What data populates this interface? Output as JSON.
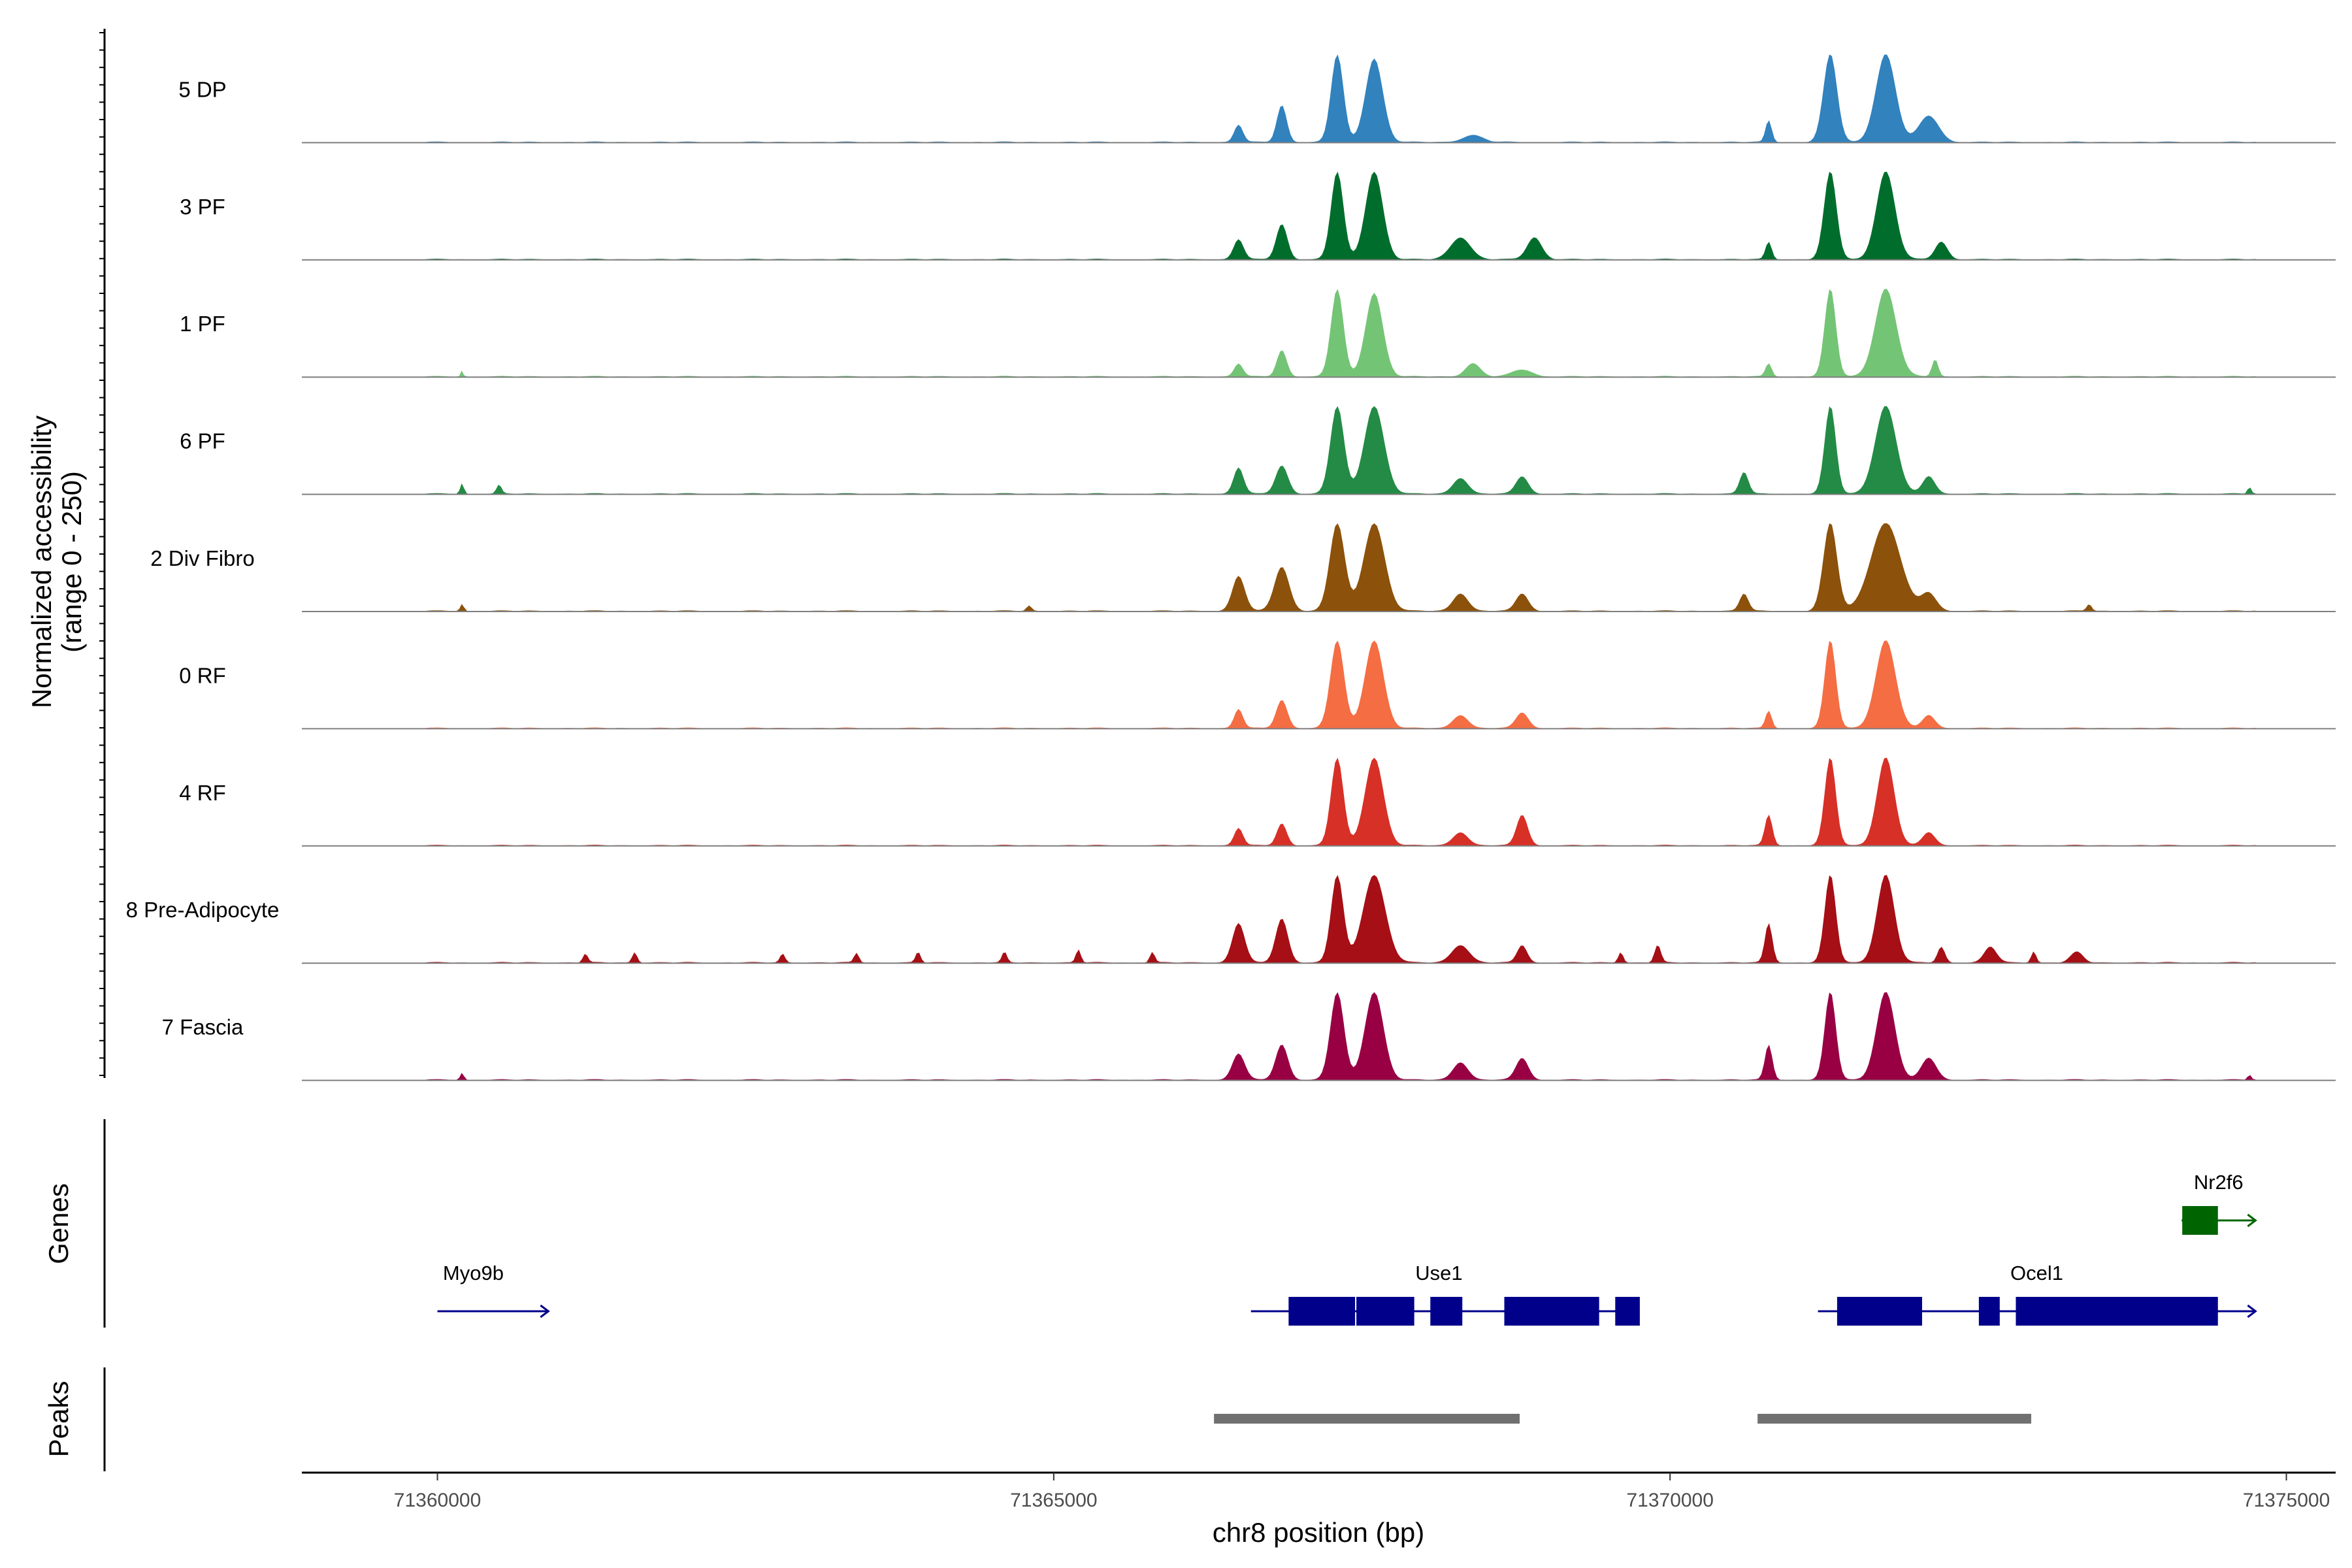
{
  "chart_data": {
    "type": "area",
    "title": "",
    "chromosome": "chr8",
    "xlabel": "chr8 position (bp)",
    "ylabel_line1": "Normalized accessibility",
    "ylabel_line2": "(range 0 - 250)",
    "ylim": [
      0,
      250
    ],
    "xlim": [
      71358900,
      71375400
    ],
    "data_range": [
      71359900,
      71374750
    ],
    "x_ticks": [
      71360000,
      71365000,
      71370000,
      71375000
    ],
    "x_tick_labels": [
      "71360000",
      "71365000",
      "71370000",
      "71375000"
    ],
    "series": [
      {
        "name": "5 DP",
        "color": "#3182bd",
        "peaks": [
          [
            71366500,
            200,
            35
          ],
          [
            71366850,
            420,
            40
          ],
          [
            71367300,
            1000,
            50
          ],
          [
            71367600,
            950,
            70
          ],
          [
            71368400,
            80,
            80
          ],
          [
            71370800,
            250,
            25
          ],
          [
            71371300,
            1000,
            55
          ],
          [
            71371750,
            1000,
            80
          ],
          [
            71372100,
            300,
            80
          ]
        ]
      },
      {
        "name": "3 PF",
        "color": "#006d2c",
        "peaks": [
          [
            71366500,
            230,
            40
          ],
          [
            71366850,
            400,
            45
          ],
          [
            71367300,
            1000,
            50
          ],
          [
            71367600,
            1000,
            70
          ],
          [
            71368300,
            250,
            80
          ],
          [
            71368900,
            250,
            60
          ],
          [
            71370800,
            200,
            25
          ],
          [
            71371300,
            1000,
            50
          ],
          [
            71371750,
            1000,
            75
          ],
          [
            71372200,
            200,
            50
          ]
        ]
      },
      {
        "name": "1 PF",
        "color": "#74c476",
        "peaks": [
          [
            71366500,
            150,
            35
          ],
          [
            71366850,
            300,
            40
          ],
          [
            71367300,
            1000,
            50
          ],
          [
            71367600,
            950,
            70
          ],
          [
            71368400,
            150,
            60
          ],
          [
            71368800,
            80,
            80
          ],
          [
            71370800,
            150,
            25
          ],
          [
            71371300,
            1000,
            45
          ],
          [
            71371750,
            1000,
            85
          ],
          [
            71372150,
            200,
            25
          ],
          [
            71360200,
            70,
            10
          ]
        ]
      },
      {
        "name": "6 PF",
        "color": "#238b45",
        "peaks": [
          [
            71366500,
            300,
            40
          ],
          [
            71366850,
            320,
            50
          ],
          [
            71367300,
            1000,
            55
          ],
          [
            71367600,
            1000,
            80
          ],
          [
            71368300,
            180,
            60
          ],
          [
            71368800,
            200,
            50
          ],
          [
            71370600,
            250,
            35
          ],
          [
            71371300,
            1000,
            45
          ],
          [
            71371750,
            1000,
            85
          ],
          [
            71372100,
            200,
            50
          ],
          [
            71360200,
            120,
            15
          ],
          [
            71360500,
            100,
            20
          ],
          [
            71374700,
            80,
            15
          ]
        ]
      },
      {
        "name": "2 Div Fibro",
        "color": "#8c510a",
        "peaks": [
          [
            71366500,
            400,
            50
          ],
          [
            71366850,
            500,
            60
          ],
          [
            71367300,
            1000,
            60
          ],
          [
            71367600,
            1000,
            85
          ],
          [
            71368300,
            200,
            60
          ],
          [
            71368800,
            200,
            50
          ],
          [
            71370600,
            200,
            35
          ],
          [
            71371300,
            1000,
            55
          ],
          [
            71371750,
            1000,
            120
          ],
          [
            71372100,
            200,
            60
          ],
          [
            71360200,
            80,
            15
          ],
          [
            71364800,
            60,
            20
          ],
          [
            71373400,
            80,
            20
          ]
        ]
      },
      {
        "name": "0 RF",
        "color": "#f46d43",
        "peaks": [
          [
            71366500,
            220,
            35
          ],
          [
            71366850,
            320,
            45
          ],
          [
            71367300,
            1000,
            55
          ],
          [
            71367600,
            1000,
            75
          ],
          [
            71368300,
            150,
            60
          ],
          [
            71368800,
            180,
            50
          ],
          [
            71370800,
            200,
            25
          ],
          [
            71371300,
            1000,
            45
          ],
          [
            71371750,
            1000,
            80
          ],
          [
            71372100,
            150,
            50
          ]
        ]
      },
      {
        "name": "4 RF",
        "color": "#d73027",
        "peaks": [
          [
            71366500,
            200,
            35
          ],
          [
            71366850,
            250,
            40
          ],
          [
            71367300,
            1000,
            50
          ],
          [
            71367600,
            1000,
            75
          ],
          [
            71368300,
            150,
            60
          ],
          [
            71368800,
            350,
            45
          ],
          [
            71370800,
            350,
            30
          ],
          [
            71371300,
            1000,
            45
          ],
          [
            71371750,
            1000,
            70
          ],
          [
            71372100,
            150,
            50
          ]
        ]
      },
      {
        "name": "8 Pre-Adipocyte",
        "color": "#a50f15",
        "peaks": [
          [
            71366500,
            450,
            50
          ],
          [
            71366850,
            500,
            50
          ],
          [
            71367300,
            1000,
            50
          ],
          [
            71367600,
            1000,
            90
          ],
          [
            71368300,
            200,
            70
          ],
          [
            71368800,
            200,
            40
          ],
          [
            71370800,
            450,
            30
          ],
          [
            71371300,
            1000,
            45
          ],
          [
            71371750,
            1000,
            70
          ],
          [
            71372200,
            180,
            30
          ],
          [
            71372600,
            180,
            50
          ],
          [
            71373300,
            120,
            50
          ],
          [
            71361200,
            100,
            20
          ],
          [
            71361600,
            120,
            20
          ],
          [
            71362800,
            100,
            20
          ],
          [
            71363400,
            110,
            20
          ],
          [
            71363900,
            120,
            20
          ],
          [
            71364600,
            120,
            20
          ],
          [
            71365200,
            150,
            20
          ],
          [
            71365800,
            120,
            20
          ],
          [
            71369600,
            120,
            20
          ],
          [
            71369900,
            200,
            25
          ],
          [
            71372950,
            130,
            20
          ]
        ]
      },
      {
        "name": "7 Fascia",
        "color": "#980043",
        "peaks": [
          [
            71366500,
            300,
            50
          ],
          [
            71366850,
            400,
            50
          ],
          [
            71367300,
            1000,
            55
          ],
          [
            71367600,
            1000,
            75
          ],
          [
            71368300,
            200,
            60
          ],
          [
            71368800,
            250,
            50
          ],
          [
            71370800,
            400,
            30
          ],
          [
            71371300,
            1000,
            45
          ],
          [
            71371750,
            1000,
            75
          ],
          [
            71372100,
            250,
            60
          ],
          [
            71360200,
            80,
            15
          ],
          [
            71374700,
            60,
            15
          ]
        ]
      }
    ],
    "genes_track_label": "Genes",
    "genes": [
      {
        "name": "Myo9b",
        "strand": "+",
        "color": "#00008b",
        "start": 71360000,
        "end": 71360900,
        "row": 2,
        "exons": []
      },
      {
        "name": "Use1",
        "strand": "+",
        "color": "#00008b",
        "start": 71366600,
        "end": 71369650,
        "row": 2,
        "exons": [
          [
            71366900,
            71367450
          ],
          [
            71367450,
            71367930
          ],
          [
            71368050,
            71368320
          ],
          [
            71368650,
            71369430
          ],
          [
            71369550,
            71369760
          ]
        ]
      },
      {
        "name": "Ocel1",
        "strand": "+",
        "color": "#00008b",
        "start": 71371200,
        "end": 71374750,
        "row": 2,
        "exons": [
          [
            71371350,
            71372050
          ],
          [
            71372500,
            71372680
          ],
          [
            71372800,
            71374450
          ]
        ]
      },
      {
        "name": "Nr2f6",
        "strand": "+",
        "color": "#006400",
        "start": 71374150,
        "end": 71374750,
        "row": 1,
        "exons": [
          [
            71374150,
            71374450
          ]
        ]
      }
    ],
    "peaks_track_label": "Peaks",
    "peak_regions": [
      [
        71366300,
        71368780
      ],
      [
        71370710,
        71372930
      ]
    ],
    "peak_color": "#707070"
  }
}
